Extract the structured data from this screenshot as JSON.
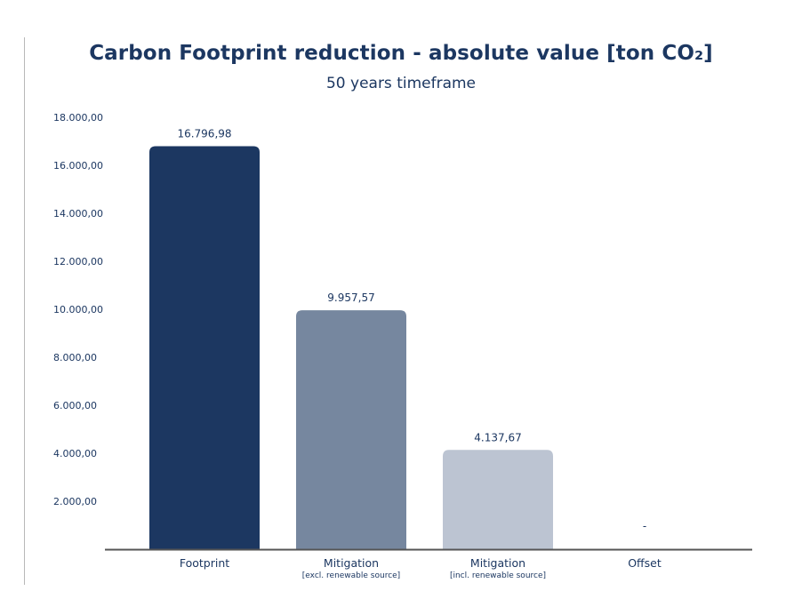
{
  "chart_data": {
    "type": "bar",
    "title": "Carbon Footprint reduction -  absolute value [ton CO₂]",
    "subtitle": "50 years timeframe",
    "xlabel": "",
    "ylabel": "",
    "ylim": [
      0,
      18000
    ],
    "yticks": [
      2000,
      4000,
      6000,
      8000,
      10000,
      12000,
      14000,
      16000,
      18000
    ],
    "ytick_labels": [
      "2.000,00",
      "4.000,00",
      "6.000,00",
      "8.000,00",
      "10.000,00",
      "12.000,00",
      "14.000,00",
      "16.000,00",
      "18.000,00"
    ],
    "grid": false,
    "legend": "none",
    "categories": [
      "Footprint",
      "Mitigation",
      "Mitigation",
      "Offset"
    ],
    "category_sublabels": [
      "",
      "[excl. renewable source]",
      "[incl. renewable source]",
      ""
    ],
    "values": [
      16796.98,
      9957.57,
      4137.67,
      0
    ],
    "data_labels": [
      "16.796,98",
      "9.957,57",
      "4.137,67",
      "-"
    ],
    "colors": [
      "#1c3761",
      "#76879f",
      "#bcc4d2",
      "#bcc4d2"
    ]
  }
}
